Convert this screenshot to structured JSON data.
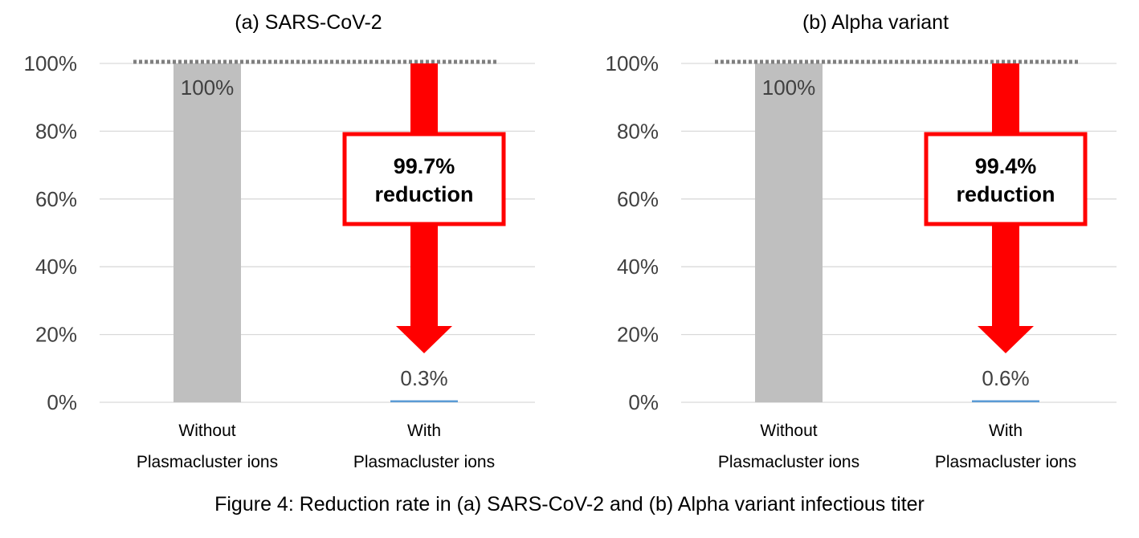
{
  "figure": {
    "caption": "Figure 4: Reduction rate in (a) SARS-CoV-2 and (b) Alpha variant infectious titer"
  },
  "colors": {
    "bar_without": "#bfbfbf",
    "bar_with": "#5b9bd5",
    "arrow": "#ff0000",
    "gridline": "#d9d9d9",
    "reference_line": "#7f7f7f"
  },
  "chart_data": [
    {
      "type": "bar",
      "title": "(a) SARS-CoV-2",
      "categories": [
        "Without\nPlasmacluster ions",
        "With\nPlasmacluster ions"
      ],
      "values": [
        100,
        0.3
      ],
      "data_labels": [
        "100%",
        "0.3%"
      ],
      "ylim": [
        0,
        100
      ],
      "yticks": [
        "0%",
        "20%",
        "40%",
        "60%",
        "80%",
        "100%"
      ],
      "xlabel": "",
      "ylabel": "",
      "grid": true,
      "annotation": {
        "line1": "99.7%",
        "line2": "reduction"
      }
    },
    {
      "type": "bar",
      "title": "(b) Alpha variant",
      "categories": [
        "Without\nPlasmacluster ions",
        "With\nPlasmacluster ions"
      ],
      "values": [
        100,
        0.6
      ],
      "data_labels": [
        "100%",
        "0.6%"
      ],
      "ylim": [
        0,
        100
      ],
      "yticks": [
        "0%",
        "20%",
        "40%",
        "60%",
        "80%",
        "100%"
      ],
      "xlabel": "",
      "ylabel": "",
      "grid": true,
      "annotation": {
        "line1": "99.4%",
        "line2": "reduction"
      }
    }
  ]
}
